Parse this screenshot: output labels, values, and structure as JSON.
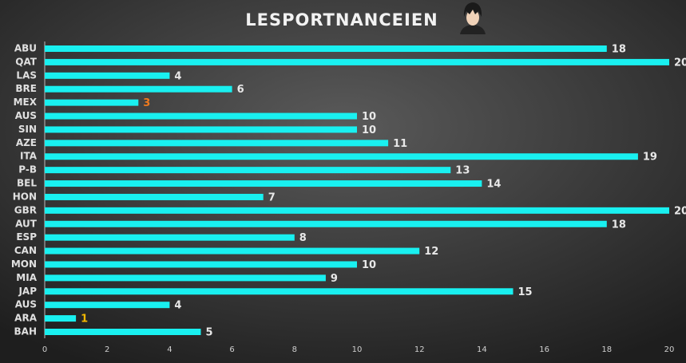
{
  "chart_data": {
    "type": "barh",
    "title": "LESPORTNANCEIEN",
    "categories": [
      "ABU",
      "QAT",
      "LAS",
      "BRE",
      "MEX",
      "AUS",
      "SIN",
      "AZE",
      "ITA",
      "P-B",
      "BEL",
      "HON",
      "GBR",
      "AUT",
      "ESP",
      "CAN",
      "MON",
      "MIA",
      "JAP",
      "AUS",
      "ARA",
      "BAH"
    ],
    "values": [
      18,
      20,
      4,
      6,
      3,
      10,
      10,
      11,
      19,
      13,
      14,
      7,
      20,
      18,
      8,
      12,
      10,
      9,
      15,
      4,
      1,
      5
    ],
    "color": "#19f0f0",
    "value_label_colors": [
      "#e8e8e8",
      "#e8e8e8",
      "#e8e8e8",
      "#e8e8e8",
      "#f07a1e",
      "#e8e8e8",
      "#e8e8e8",
      "#e8e8e8",
      "#e8e8e8",
      "#e8e8e8",
      "#e8e8e8",
      "#e8e8e8",
      "#e8e8e8",
      "#e8e8e8",
      "#e8e8e8",
      "#e8e8e8",
      "#e8e8e8",
      "#e8e8e8",
      "#e8e8e8",
      "#e8e8e8",
      "#f5b800",
      "#e8e8e8"
    ],
    "xlim": [
      0,
      20
    ],
    "xticks": [
      0,
      2,
      4,
      6,
      8,
      10,
      12,
      14,
      16,
      18,
      20
    ],
    "grid": false
  }
}
